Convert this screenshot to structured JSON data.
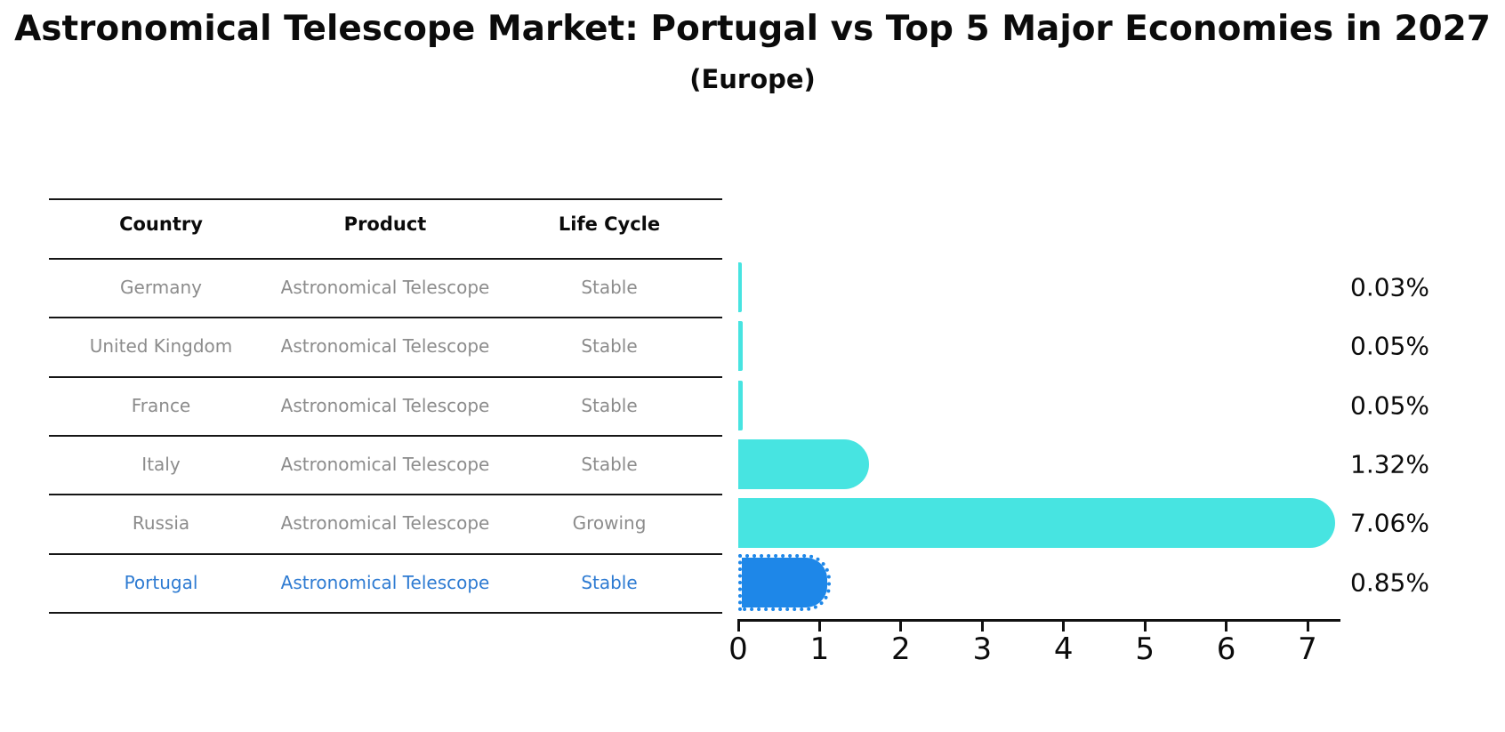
{
  "title": "Astronomical Telescope Market: Portugal vs Top 5 Major Economies in 2027",
  "subtitle": "(Europe)",
  "table": {
    "headers": {
      "country": "Country",
      "product": "Product",
      "life_cycle": "Life Cycle"
    },
    "rows": [
      {
        "country": "Germany",
        "product": "Astronomical Telescope",
        "life_cycle": "Stable",
        "highlight": false
      },
      {
        "country": "United Kingdom",
        "product": "Astronomical Telescope",
        "life_cycle": "Stable",
        "highlight": false
      },
      {
        "country": "France",
        "product": "Astronomical Telescope",
        "life_cycle": "Stable",
        "highlight": false
      },
      {
        "country": "Italy",
        "product": "Astronomical Telescope",
        "life_cycle": "Stable",
        "highlight": false
      },
      {
        "country": "Russia",
        "product": "Astronomical Telescope",
        "life_cycle": "Growing",
        "highlight": false
      },
      {
        "country": "Portugal",
        "product": "Astronomical Telescope",
        "life_cycle": "Stable",
        "highlight": true
      }
    ]
  },
  "chart_data": {
    "type": "bar",
    "orientation": "horizontal",
    "title": "Astronomical Telescope Market: Portugal vs Top 5 Major Economies in 2027 (Europe)",
    "categories": [
      "Germany",
      "United Kingdom",
      "France",
      "Italy",
      "Russia",
      "Portugal"
    ],
    "values": [
      0.03,
      0.05,
      0.05,
      1.32,
      7.06,
      0.85
    ],
    "value_labels": [
      "0.03%",
      "0.05%",
      "0.05%",
      "1.32%",
      "7.06%",
      "0.85%"
    ],
    "unit": "percent",
    "x_ticks": [
      "0",
      "1",
      "2",
      "3",
      "4",
      "5",
      "6",
      "7"
    ],
    "xlim": [
      0,
      7.4
    ],
    "grid": false,
    "legend": false,
    "colors": {
      "bar": "#47e4e1",
      "highlight_bar": "#1e87e8",
      "highlight_text": "#2e7bd2",
      "row_text": "#8c8c8c",
      "header_text": "#0b0b0b"
    }
  }
}
